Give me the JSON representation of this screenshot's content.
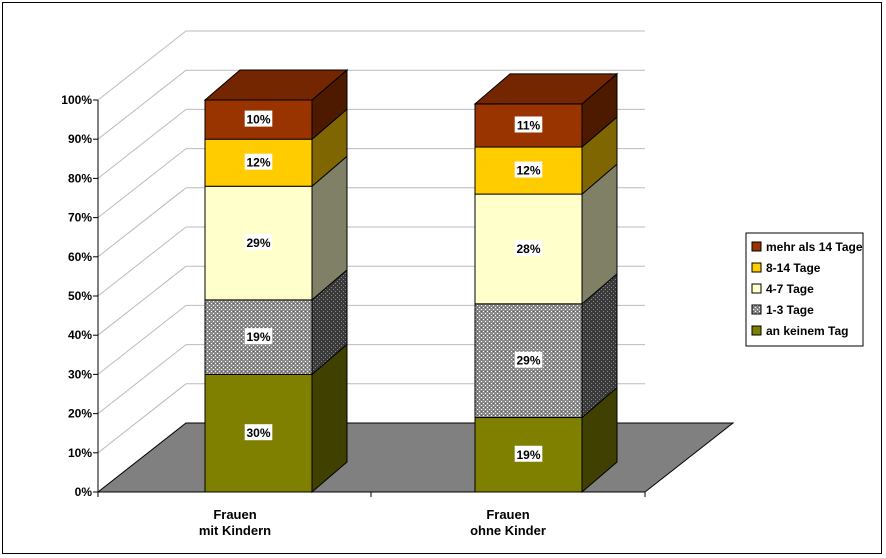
{
  "chart_data": {
    "type": "bar",
    "stacked": true,
    "percent": true,
    "three_d": true,
    "categories": [
      "Frauen\nmit Kindern",
      "Frauen\nohne Kinder"
    ],
    "series": [
      {
        "name": "an keinem Tag",
        "values": [
          30,
          19
        ],
        "labels": [
          "30%",
          "19%"
        ],
        "color": "#808000",
        "pattern": "solid"
      },
      {
        "name": "1-3 Tage",
        "values": [
          19,
          29
        ],
        "labels": [
          "19%",
          "29%"
        ],
        "color": "#8c8c8c",
        "pattern": "dots"
      },
      {
        "name": "4-7 Tage",
        "values": [
          29,
          28
        ],
        "labels": [
          "29%",
          "28%"
        ],
        "color": "#ffffcc",
        "pattern": "solid"
      },
      {
        "name": "8-14 Tage",
        "values": [
          12,
          12
        ],
        "labels": [
          "12%",
          "12%"
        ],
        "color": "#ffcc00",
        "pattern": "solid"
      },
      {
        "name": "mehr als 14 Tage",
        "values": [
          10,
          11
        ],
        "labels": [
          "10%",
          "11%"
        ],
        "color": "#993300",
        "pattern": "solid"
      }
    ],
    "yticks": [
      "0%",
      "10%",
      "20%",
      "30%",
      "40%",
      "50%",
      "60%",
      "70%",
      "80%",
      "90%",
      "100%"
    ],
    "ylim": [
      0,
      100
    ],
    "grid": true,
    "floor_color": "#808080",
    "legend_position": "right",
    "title": "",
    "xlabel": "",
    "ylabel": ""
  }
}
